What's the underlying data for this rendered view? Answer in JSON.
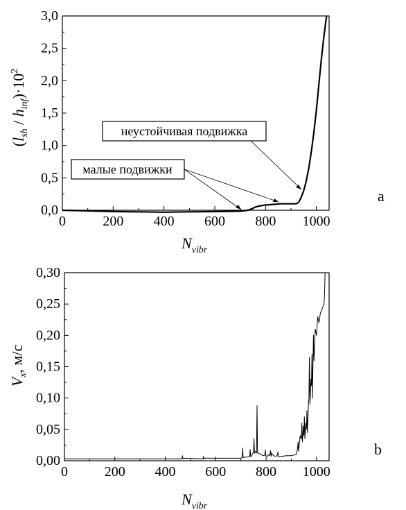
{
  "chart_data": [
    {
      "type": "line",
      "panel_label": "a",
      "xlabel_main": "N",
      "xlabel_sub": "vibr",
      "ylabel": "(l_sh / h_inf)·10^2",
      "ylabel_parts": {
        "open": "(",
        "l": "l",
        "sh": "sh",
        "slash": " / ",
        "h": "h",
        "inf": "inf",
        "close": ")·10",
        "exp": "2"
      },
      "xlim": [
        0,
        1050
      ],
      "ylim": [
        0,
        3.0
      ],
      "x_ticks": [
        0,
        200,
        400,
        600,
        800,
        1000
      ],
      "x_tick_labels": [
        "0",
        "200",
        "400",
        "600",
        "800",
        "1000"
      ],
      "y_ticks": [
        0,
        0.5,
        1.0,
        1.5,
        2.0,
        2.5,
        3.0
      ],
      "y_tick_labels": [
        "0,0",
        "0,5",
        "1,0",
        "1,5",
        "2,0",
        "2,5",
        "3,0"
      ],
      "series": [
        {
          "x": [
            0,
            100,
            200,
            300,
            400,
            500,
            600,
            700,
            730,
            745,
            760,
            780,
            800,
            830,
            860,
            880,
            900,
            920,
            930,
            940,
            950,
            960,
            970,
            980,
            990,
            1000,
            1010,
            1020,
            1030,
            1040
          ],
          "y": [
            0.0,
            -0.01,
            -0.02,
            -0.025,
            -0.03,
            -0.025,
            -0.02,
            -0.015,
            0.0,
            0.02,
            0.05,
            0.07,
            0.08,
            0.09,
            0.1,
            0.1,
            0.1,
            0.1,
            0.12,
            0.2,
            0.3,
            0.45,
            0.65,
            0.9,
            1.2,
            1.55,
            1.95,
            2.35,
            2.7,
            3.0
          ]
        }
      ],
      "annotations": [
        {
          "text": "неустойчивая подвижка",
          "points_to_x": 940,
          "points_to_y": 0.2
        },
        {
          "text": "малые подвижки",
          "points_to_x": [
            710,
            860
          ],
          "points_to_y": [
            0.0,
            0.1
          ]
        }
      ]
    },
    {
      "type": "line",
      "panel_label": "b",
      "xlabel_main": "N",
      "xlabel_sub": "vibr",
      "ylabel_main": "V",
      "ylabel_sub": "x",
      "ylabel_unit": ", м/с",
      "xlim": [
        0,
        1050
      ],
      "ylim": [
        0,
        0.3
      ],
      "x_ticks": [
        0,
        200,
        400,
        600,
        800,
        1000
      ],
      "x_tick_labels": [
        "0",
        "200",
        "400",
        "600",
        "800",
        "1000"
      ],
      "y_ticks": [
        0,
        0.05,
        0.1,
        0.15,
        0.2,
        0.25,
        0.3
      ],
      "y_tick_labels": [
        "0,00",
        "0,05",
        "0,10",
        "0,15",
        "0,20",
        "0,25",
        "0,30"
      ],
      "series": [
        {
          "x": [
            0,
            100,
            200,
            300,
            400,
            466,
            468,
            470,
            472,
            550,
            551,
            552,
            553,
            700,
            705,
            707,
            709,
            720,
            730,
            735,
            737,
            739,
            745,
            750,
            752,
            754,
            758,
            762,
            764,
            766,
            770,
            780,
            790,
            795,
            797,
            799,
            805,
            810,
            815,
            818,
            820,
            822,
            830,
            840,
            845,
            847,
            849,
            860,
            880,
            900,
            920,
            925,
            927,
            929,
            935,
            940,
            942,
            944,
            948,
            950,
            952,
            954,
            958,
            960,
            962,
            964,
            968,
            970,
            972,
            974,
            978,
            980,
            982,
            984,
            988,
            990,
            995,
            1000,
            1005,
            1010,
            1015,
            1020,
            1025,
            1030,
            1032,
            1034
          ],
          "y": [
            0.003,
            0.003,
            0.003,
            0.003,
            0.003,
            0.003,
            0.008,
            0.003,
            0.004,
            0.003,
            0.007,
            0.003,
            0.004,
            0.004,
            0.005,
            0.02,
            0.005,
            0.006,
            0.006,
            0.007,
            0.018,
            0.006,
            0.01,
            0.014,
            0.035,
            0.012,
            0.015,
            0.012,
            0.088,
            0.013,
            0.012,
            0.01,
            0.008,
            0.009,
            0.017,
            0.008,
            0.007,
            0.01,
            0.008,
            0.016,
            0.007,
            0.012,
            0.008,
            0.007,
            0.009,
            0.014,
            0.006,
            0.007,
            0.008,
            0.008,
            0.01,
            0.02,
            0.03,
            0.015,
            0.04,
            0.035,
            0.06,
            0.03,
            0.055,
            0.04,
            0.07,
            0.035,
            0.06,
            0.05,
            0.08,
            0.045,
            0.09,
            0.1,
            0.165,
            0.09,
            0.13,
            0.12,
            0.17,
            0.1,
            0.2,
            0.16,
            0.21,
            0.2,
            0.23,
            0.22,
            0.235,
            0.24,
            0.245,
            0.25,
            0.27,
            0.3
          ]
        }
      ]
    }
  ]
}
